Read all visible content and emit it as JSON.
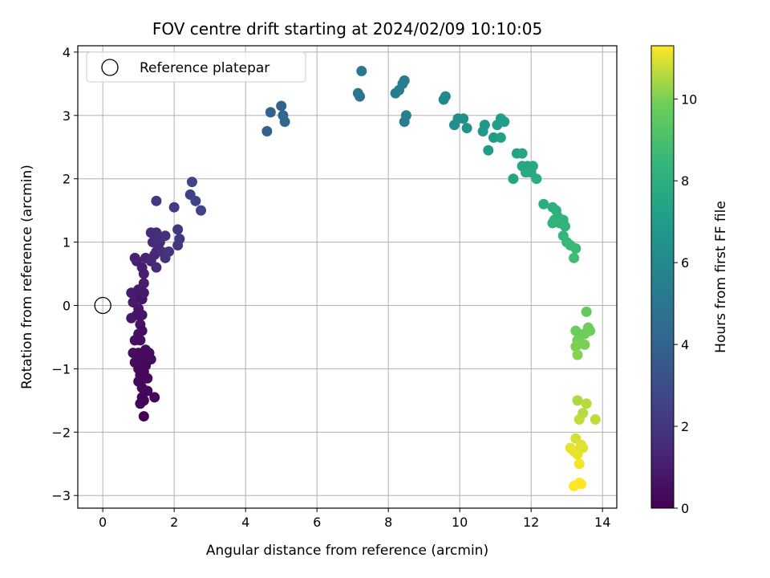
{
  "chart_data": {
    "type": "scatter",
    "title": "FOV centre drift starting at 2024/02/09 10:10:05",
    "xlabel": "Angular distance from reference (arcmin)",
    "ylabel": "Rotation from reference (arcmin)",
    "xlim": [
      -0.7,
      14.4
    ],
    "ylim": [
      -3.2,
      4.1
    ],
    "xticks": [
      0,
      2,
      4,
      6,
      8,
      10,
      12,
      14
    ],
    "yticks": [
      -3,
      -2,
      -1,
      0,
      1,
      2,
      3,
      4
    ],
    "grid": true,
    "legend": {
      "placement": "top-left",
      "entries": [
        "Reference platepar"
      ]
    },
    "reference_point": {
      "x": 0,
      "y": 0,
      "label": "Reference platepar"
    },
    "colorbar": {
      "label": "Hours from first FF file",
      "colormap": "viridis",
      "range": [
        0,
        11.3
      ],
      "ticks": [
        0,
        2,
        4,
        6,
        8,
        10
      ]
    },
    "points": [
      [
        0.8,
        0.2,
        1.0
      ],
      [
        0.85,
        0.05,
        0.9
      ],
      [
        0.8,
        -0.2,
        0.8
      ],
      [
        0.9,
        0.15,
        0.9
      ],
      [
        1.0,
        0.25,
        0.9
      ],
      [
        1.1,
        0.1,
        0.7
      ],
      [
        1.15,
        0.35,
        1.0
      ],
      [
        1.0,
        -0.05,
        0.8
      ],
      [
        0.95,
        -0.15,
        0.7
      ],
      [
        1.05,
        -0.3,
        0.6
      ],
      [
        1.1,
        -0.15,
        0.7
      ],
      [
        1.0,
        -0.45,
        0.6
      ],
      [
        1.05,
        -0.55,
        0.5
      ],
      [
        1.1,
        -0.4,
        0.5
      ],
      [
        0.85,
        -0.75,
        0.5
      ],
      [
        0.9,
        -0.9,
        0.4
      ],
      [
        1.0,
        -0.75,
        0.4
      ],
      [
        1.1,
        -0.85,
        0.4
      ],
      [
        1.2,
        -0.7,
        0.35
      ],
      [
        1.3,
        -0.75,
        0.4
      ],
      [
        1.35,
        -0.85,
        0.45
      ],
      [
        1.0,
        -1.0,
        0.35
      ],
      [
        1.05,
        -1.1,
        0.3
      ],
      [
        1.15,
        -1.05,
        0.3
      ],
      [
        1.2,
        -0.95,
        0.3
      ],
      [
        1.25,
        -1.15,
        0.25
      ],
      [
        1.0,
        -1.2,
        0.25
      ],
      [
        1.1,
        -1.3,
        0.2
      ],
      [
        1.25,
        -1.35,
        0.2
      ],
      [
        1.45,
        -1.45,
        0.2
      ],
      [
        1.1,
        -1.45,
        0.15
      ],
      [
        1.15,
        -1.5,
        0.1
      ],
      [
        1.15,
        -1.75,
        0.05
      ],
      [
        1.05,
        -1.55,
        0.1
      ],
      [
        1.2,
        -1.15,
        0.25
      ],
      [
        0.9,
        -0.55,
        0.55
      ],
      [
        1.15,
        0.2,
        0.9
      ],
      [
        0.95,
        0.7,
        1.1
      ],
      [
        0.9,
        0.75,
        1.2
      ],
      [
        1.1,
        0.6,
        1.1
      ],
      [
        1.15,
        0.5,
        1.1
      ],
      [
        1.2,
        0.75,
        1.2
      ],
      [
        1.35,
        0.7,
        1.3
      ],
      [
        1.45,
        0.8,
        1.4
      ],
      [
        1.5,
        0.85,
        1.4
      ],
      [
        1.55,
        0.95,
        1.5
      ],
      [
        1.6,
        1.0,
        1.5
      ],
      [
        1.4,
        1.0,
        1.5
      ],
      [
        1.35,
        1.15,
        1.6
      ],
      [
        1.5,
        1.15,
        1.6
      ],
      [
        1.6,
        1.05,
        1.7
      ],
      [
        1.75,
        1.1,
        1.7
      ],
      [
        1.5,
        0.6,
        1.5
      ],
      [
        1.65,
        0.85,
        1.7
      ],
      [
        1.75,
        0.75,
        1.8
      ],
      [
        1.85,
        0.85,
        1.9
      ],
      [
        2.1,
        0.95,
        2.0
      ],
      [
        2.15,
        1.05,
        2.0
      ],
      [
        2.1,
        1.2,
        2.0
      ],
      [
        1.5,
        1.65,
        2.2
      ],
      [
        2.0,
        1.55,
        2.3
      ],
      [
        2.45,
        1.75,
        2.5
      ],
      [
        2.6,
        1.65,
        2.6
      ],
      [
        2.75,
        1.5,
        2.6
      ],
      [
        2.5,
        1.95,
        2.7
      ],
      [
        4.6,
        2.75,
        3.9
      ],
      [
        4.7,
        3.05,
        4.0
      ],
      [
        5.0,
        3.15,
        4.1
      ],
      [
        5.05,
        3.0,
        4.2
      ],
      [
        5.1,
        2.9,
        4.2
      ],
      [
        7.15,
        3.35,
        5.0
      ],
      [
        7.2,
        3.3,
        5.0
      ],
      [
        7.25,
        3.7,
        5.1
      ],
      [
        8.2,
        3.35,
        5.3
      ],
      [
        8.3,
        3.4,
        5.3
      ],
      [
        8.4,
        3.5,
        5.4
      ],
      [
        8.45,
        3.55,
        5.4
      ],
      [
        8.5,
        3.0,
        5.5
      ],
      [
        8.45,
        2.9,
        5.5
      ],
      [
        9.55,
        3.25,
        6.0
      ],
      [
        9.6,
        3.3,
        6.0
      ],
      [
        9.85,
        2.85,
        6.3
      ],
      [
        9.95,
        2.95,
        6.3
      ],
      [
        10.1,
        2.95,
        6.4
      ],
      [
        10.2,
        2.8,
        6.5
      ],
      [
        10.65,
        2.75,
        6.8
      ],
      [
        10.7,
        2.85,
        6.8
      ],
      [
        10.8,
        2.45,
        6.9
      ],
      [
        10.95,
        2.65,
        7.0
      ],
      [
        11.05,
        2.85,
        7.1
      ],
      [
        11.15,
        2.95,
        7.1
      ],
      [
        11.25,
        2.9,
        7.1
      ],
      [
        11.15,
        2.65,
        7.2
      ],
      [
        11.5,
        2.0,
        7.4
      ],
      [
        11.6,
        2.4,
        7.4
      ],
      [
        11.75,
        2.4,
        7.5
      ],
      [
        11.75,
        2.2,
        7.6
      ],
      [
        11.9,
        2.2,
        7.6
      ],
      [
        11.85,
        2.1,
        7.7
      ],
      [
        12.0,
        2.1,
        7.7
      ],
      [
        12.05,
        2.2,
        7.7
      ],
      [
        12.15,
        2.0,
        7.8
      ],
      [
        12.35,
        1.6,
        7.9
      ],
      [
        12.6,
        1.55,
        8.0
      ],
      [
        12.7,
        1.5,
        8.0
      ],
      [
        12.75,
        1.4,
        8.1
      ],
      [
        12.65,
        1.35,
        8.1
      ],
      [
        12.8,
        1.3,
        8.2
      ],
      [
        12.9,
        1.35,
        8.2
      ],
      [
        12.95,
        1.25,
        8.3
      ],
      [
        12.6,
        1.3,
        8.2
      ],
      [
        12.9,
        1.1,
        8.4
      ],
      [
        13.0,
        1.0,
        8.5
      ],
      [
        13.1,
        0.95,
        8.6
      ],
      [
        13.25,
        0.9,
        8.6
      ],
      [
        13.2,
        0.75,
        8.8
      ],
      [
        13.55,
        -0.1,
        9.6
      ],
      [
        13.25,
        -0.4,
        9.8
      ],
      [
        13.35,
        -0.45,
        9.8
      ],
      [
        13.5,
        -0.45,
        9.9
      ],
      [
        13.6,
        -0.35,
        9.9
      ],
      [
        13.65,
        -0.4,
        9.9
      ],
      [
        13.3,
        -0.55,
        9.9
      ],
      [
        13.4,
        -0.6,
        10.0
      ],
      [
        13.25,
        -0.65,
        10.0
      ],
      [
        13.5,
        -0.62,
        10.0
      ],
      [
        13.3,
        -0.78,
        10.1
      ],
      [
        13.3,
        -1.5,
        10.5
      ],
      [
        13.55,
        -1.55,
        10.6
      ],
      [
        13.45,
        -1.7,
        10.6
      ],
      [
        13.8,
        -1.8,
        10.7
      ],
      [
        13.35,
        -1.8,
        10.7
      ],
      [
        13.25,
        -2.1,
        10.9
      ],
      [
        13.4,
        -2.2,
        11.0
      ],
      [
        13.45,
        -2.25,
        11.0
      ],
      [
        13.2,
        -2.3,
        11.0
      ],
      [
        13.3,
        -2.35,
        11.1
      ],
      [
        13.1,
        -2.25,
        11.1
      ],
      [
        13.35,
        -2.5,
        11.2
      ],
      [
        13.35,
        -2.8,
        11.3
      ],
      [
        13.2,
        -2.85,
        11.3
      ],
      [
        13.4,
        -2.82,
        11.3
      ]
    ]
  }
}
